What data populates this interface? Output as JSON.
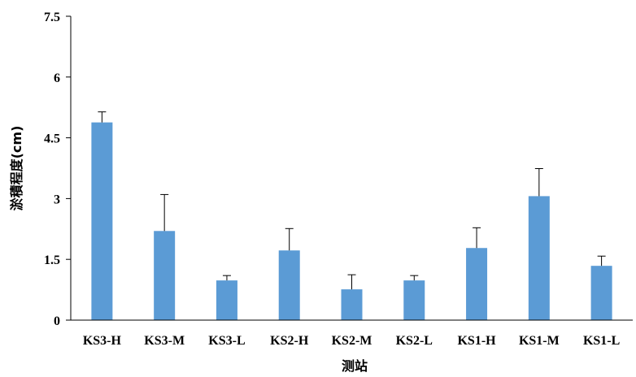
{
  "chart_data": {
    "type": "bar",
    "title": "",
    "xlabel": "测站",
    "ylabel": "淤積程度(cm)",
    "ylim": [
      0,
      7.5
    ],
    "yticks": [
      "0",
      "1.5",
      "3",
      "4.5",
      "6",
      "7.5"
    ],
    "grid": false,
    "legend": "none",
    "categories": [
      "KS3-H",
      "KS3-M",
      "KS3-L",
      "KS2-H",
      "KS2-M",
      "KS2-L",
      "KS1-H",
      "KS1-M",
      "KS1-L"
    ],
    "series": [
      {
        "values": [
          4.88,
          2.2,
          0.98,
          1.72,
          0.76,
          0.98,
          1.78,
          3.06,
          1.34
        ],
        "error_plus": [
          0.26,
          0.9,
          0.12,
          0.54,
          0.36,
          0.12,
          0.5,
          0.68,
          0.24
        ]
      }
    ],
    "colors": {
      "bar": "#5b9bd5",
      "error_bar": "#000000",
      "axis": "#000000"
    }
  }
}
